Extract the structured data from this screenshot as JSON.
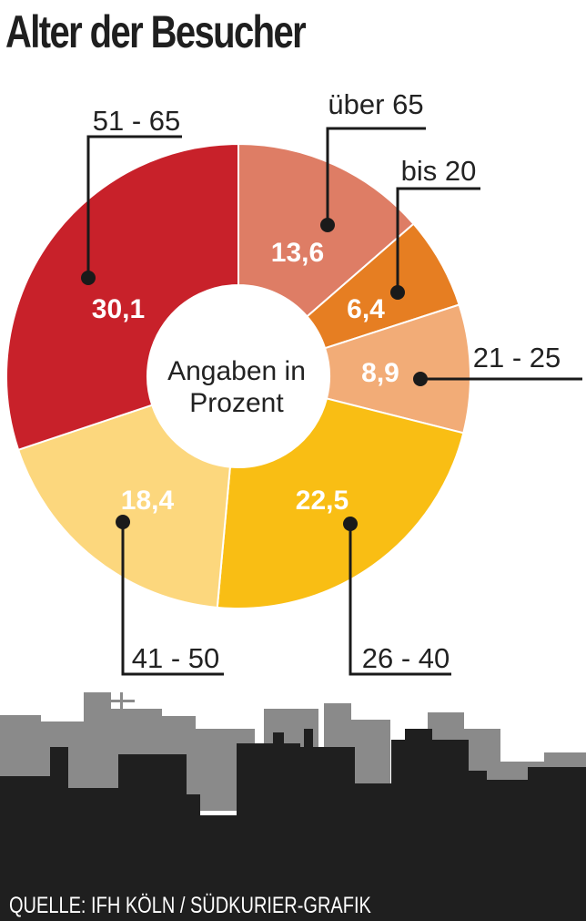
{
  "title": "Alter der Besucher",
  "source": "QUELLE: IFH KÖLN / SÜDKURIER-GRAFIK",
  "chart_data": {
    "type": "pie",
    "donut": true,
    "title": "Alter der Besucher",
    "center_label": [
      "Angaben in",
      "Prozent"
    ],
    "slices": [
      {
        "label": "über 65",
        "value": 13.6,
        "value_label": "13,6",
        "color": "#DE7D65"
      },
      {
        "label": "bis 20",
        "value": 6.4,
        "value_label": "6,4",
        "color": "#E67E22"
      },
      {
        "label": "21 - 25",
        "value": 8.9,
        "value_label": "8,9",
        "color": "#F2AC77"
      },
      {
        "label": "26 - 40",
        "value": 22.5,
        "value_label": "22,5",
        "color": "#F9BE14"
      },
      {
        "label": "41 - 50",
        "value": 18.4,
        "value_label": "18,4",
        "color": "#FCD77D"
      },
      {
        "label": "51 - 65",
        "value": 30.1,
        "value_label": "30,1",
        "color": "#C8212A"
      }
    ]
  },
  "colors": {
    "skyline_back": "#8a8a8a",
    "skyline_front": "#1f1f1f",
    "leader": "#1a1a1a"
  }
}
